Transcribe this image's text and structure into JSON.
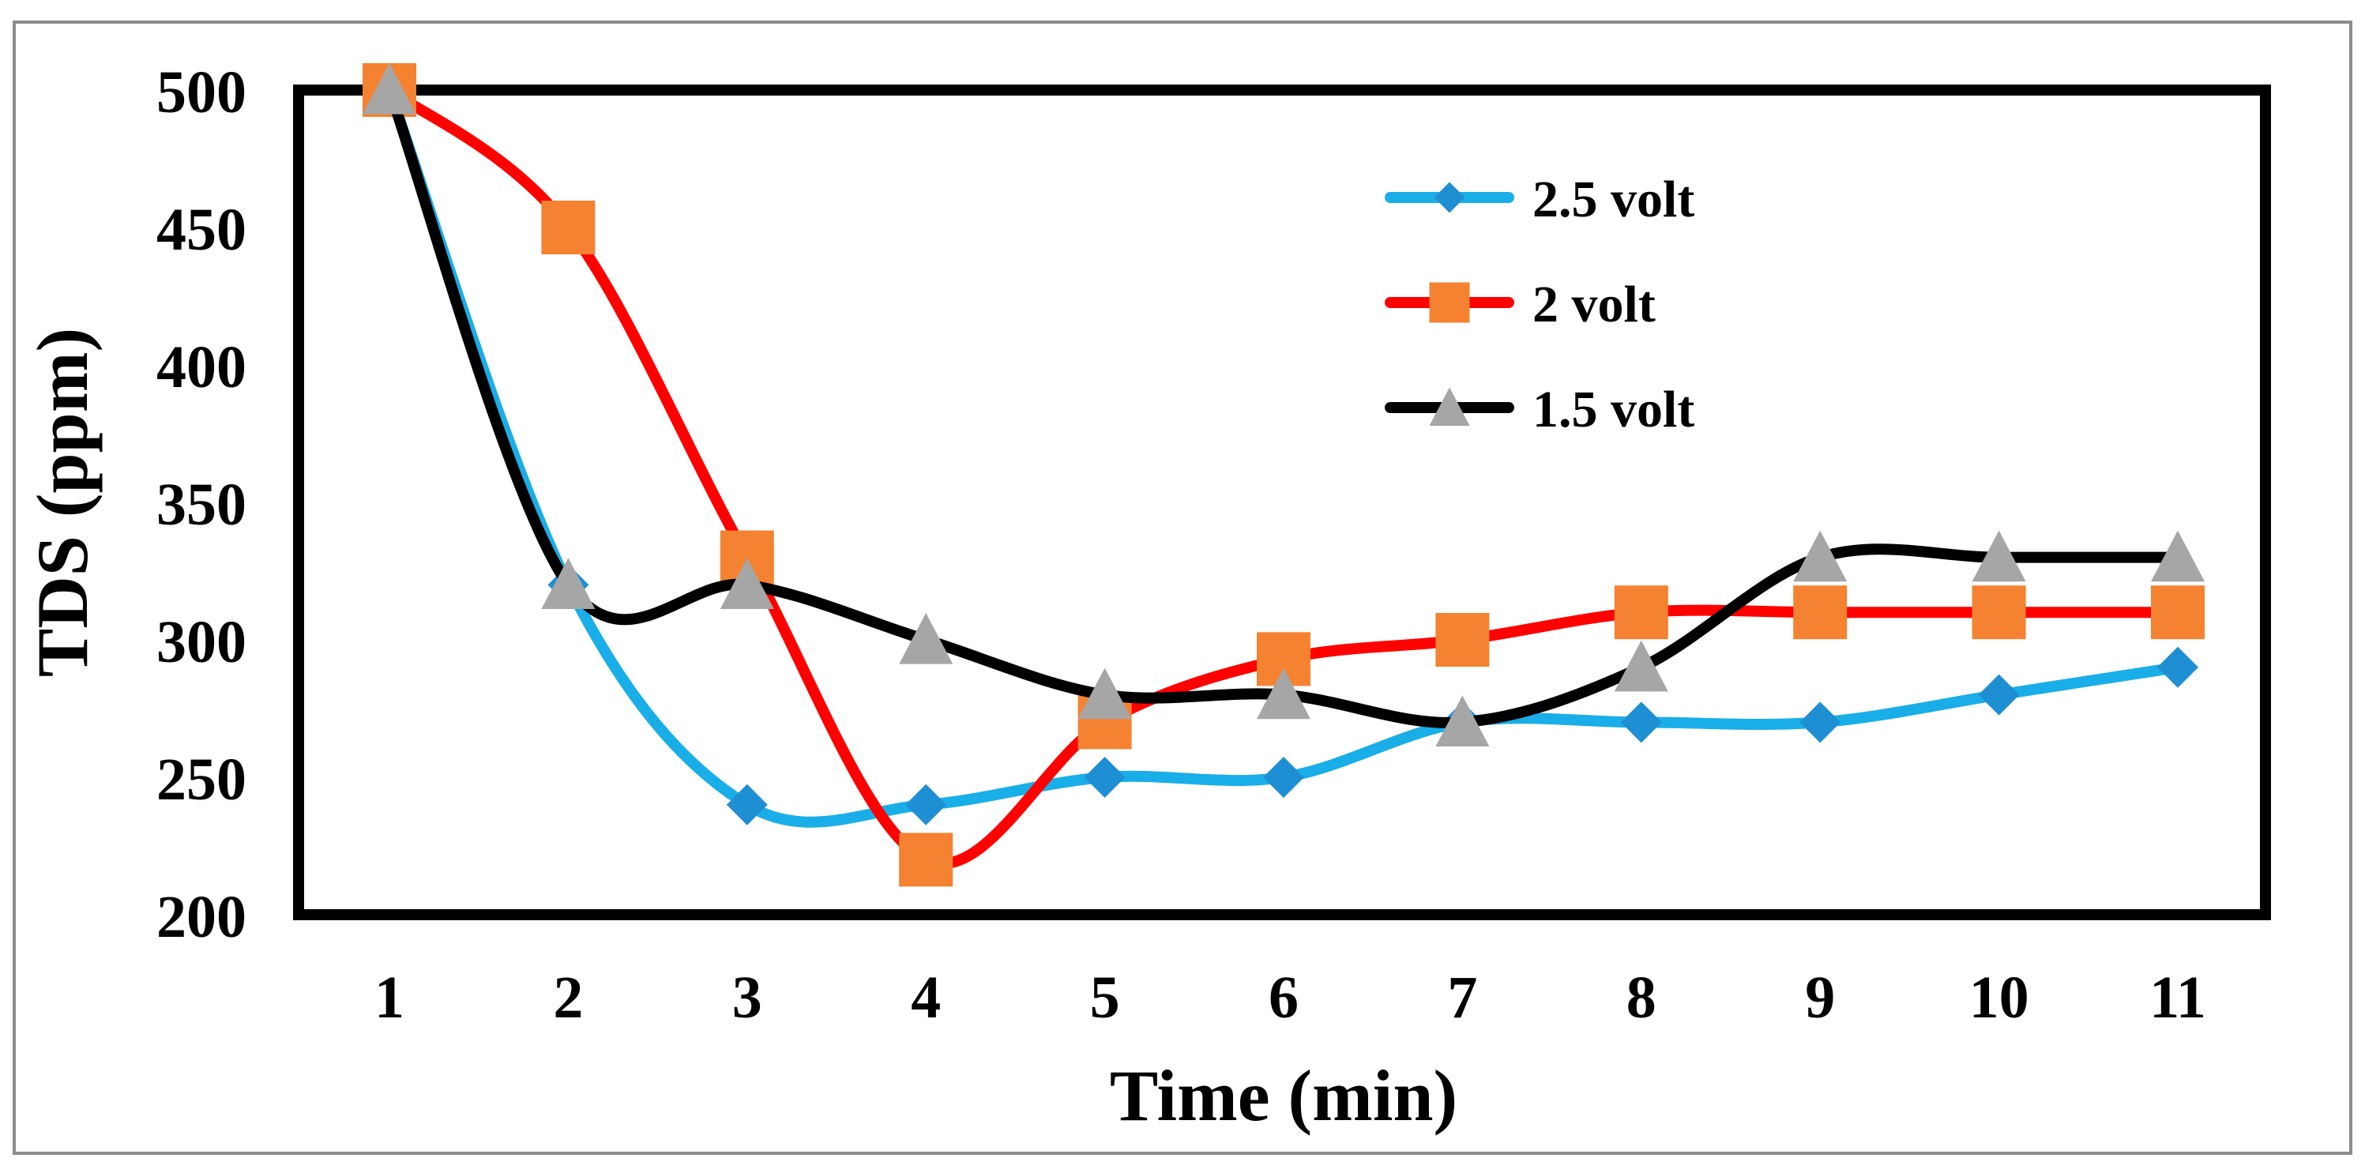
{
  "chart_data": {
    "type": "line",
    "title": "",
    "xlabel": "Time (min)",
    "ylabel": "TDS (ppm)",
    "categories": [
      "1",
      "2",
      "3",
      "4",
      "5",
      "6",
      "7",
      "8",
      "9",
      "10",
      "11"
    ],
    "ylim": [
      200,
      500
    ],
    "yticks": [
      "200",
      "250",
      "300",
      "350",
      "400",
      "450",
      "500"
    ],
    "grid": false,
    "legend_position": "top-right",
    "series": [
      {
        "name": "2.5 volt",
        "color": "#19aee8",
        "marker_color": "#1f8fd4",
        "marker": "diamond",
        "values": [
          500,
          320,
          240,
          240,
          250,
          250,
          270,
          270,
          270,
          280,
          290
        ]
      },
      {
        "name": "2 volt",
        "color": "#ff0000",
        "marker_color": "#f58230",
        "marker": "square",
        "values": [
          500,
          450,
          330,
          220,
          270,
          293,
          300,
          310,
          310,
          310,
          310
        ]
      },
      {
        "name": "1.5 volt",
        "color": "#000000",
        "marker_color": "#a6a6a6",
        "marker": "triangle",
        "values": [
          500,
          320,
          320,
          300,
          280,
          280,
          270,
          290,
          330,
          330,
          330
        ]
      }
    ]
  }
}
